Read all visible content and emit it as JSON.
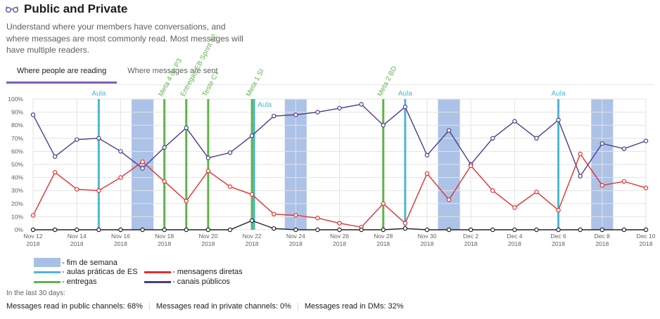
{
  "header": {
    "title": "Public and Private",
    "icon": "glasses-icon"
  },
  "description": "Understand where your members have conversations, and where messages are most commonly read. Most messages will have multiple readers.",
  "tabs": [
    {
      "label": "Where people are reading",
      "active": true
    },
    {
      "label": "Where messages are sent",
      "active": false
    }
  ],
  "chart_data": {
    "type": "line",
    "x": [
      "2018-11-12",
      "2018-11-13",
      "2018-11-14",
      "2018-11-15",
      "2018-11-16",
      "2018-11-17",
      "2018-11-18",
      "2018-11-19",
      "2018-11-20",
      "2018-11-21",
      "2018-11-22",
      "2018-11-23",
      "2018-11-24",
      "2018-11-25",
      "2018-11-26",
      "2018-11-27",
      "2018-11-28",
      "2018-11-29",
      "2018-11-30",
      "2018-12-01",
      "2018-12-02",
      "2018-12-03",
      "2018-12-04",
      "2018-12-05",
      "2018-12-06",
      "2018-12-07",
      "2018-12-08",
      "2018-12-09",
      "2018-12-10"
    ],
    "x_ticks": [
      {
        "label": "Nov 12",
        "year": "2018"
      },
      {
        "label": "Nov 14",
        "year": "2018"
      },
      {
        "label": "Nov 16",
        "year": "2018"
      },
      {
        "label": "Nov 18",
        "year": "2018"
      },
      {
        "label": "Nov 20",
        "year": "2018"
      },
      {
        "label": "Nov 22",
        "year": "2018"
      },
      {
        "label": "Nov 24",
        "year": "2018"
      },
      {
        "label": "Nov 26",
        "year": "2018"
      },
      {
        "label": "Nov 28",
        "year": "2018"
      },
      {
        "label": "Nov 30",
        "year": "2018"
      },
      {
        "label": "Dec 2",
        "year": "2018"
      },
      {
        "label": "Dec 4",
        "year": "2018"
      },
      {
        "label": "Dec 6",
        "year": "2018"
      },
      {
        "label": "Dec 8",
        "year": "2018"
      },
      {
        "label": "Dec 10",
        "year": "2018"
      }
    ],
    "y_ticks": [
      "0%",
      "10%",
      "20%",
      "30%",
      "40%",
      "50%",
      "60%",
      "70%",
      "80%",
      "90%",
      "100%"
    ],
    "ylim": [
      0,
      100
    ],
    "grid": true,
    "series": [
      {
        "key": "public",
        "color": "#4a3c8c",
        "values": [
          88,
          56,
          69,
          70,
          60,
          47,
          63,
          78,
          55,
          59,
          72,
          87,
          88,
          90,
          93,
          96,
          80,
          94,
          57,
          76,
          50,
          70,
          83,
          70,
          84,
          41,
          66,
          62,
          68
        ]
      },
      {
        "key": "dm",
        "color": "#e0302f",
        "values": [
          11,
          44,
          31,
          30,
          40,
          52,
          37,
          22,
          45,
          33,
          27,
          12,
          11,
          9,
          5,
          2,
          20,
          5,
          43,
          23,
          49,
          30,
          17,
          29,
          15,
          58,
          34,
          37,
          32
        ]
      },
      {
        "key": "private",
        "color": "#222222",
        "values": [
          0,
          0,
          0,
          0,
          0,
          0,
          0,
          0,
          0,
          0,
          7,
          1,
          0,
          0,
          0,
          0,
          0,
          1,
          0,
          0,
          0,
          0,
          0,
          0,
          0,
          0,
          0,
          0,
          0
        ]
      }
    ],
    "weekend_bands": [
      [
        "2018-11-16.5",
        "2018-11-17.5"
      ],
      [
        "2018-11-23.5",
        "2018-11-24.5"
      ],
      [
        "2018-11-30.5",
        "2018-12-01.5"
      ],
      [
        "2018-12-07.5",
        "2018-12-08.5"
      ]
    ],
    "events": [
      {
        "date": "2018-11-15",
        "type": "aula",
        "label": "Aula"
      },
      {
        "date": "2018-11-18",
        "type": "entrega",
        "label": "Meta 4 de P3"
      },
      {
        "date": "2018-11-19",
        "type": "entrega",
        "label": "Entregas EB Sprint #2"
      },
      {
        "date": "2018-11-20",
        "type": "entrega",
        "label": "Teste CT"
      },
      {
        "date": "2018-11-22",
        "type": "entrega",
        "label": "Meta 1 SI"
      },
      {
        "date": "2018-11-22",
        "type": "aula",
        "label": "Aula"
      },
      {
        "date": "2018-11-28",
        "type": "entrega",
        "label": "Meta 2 BD"
      },
      {
        "date": "2018-11-29",
        "type": "aula",
        "label": "Aula"
      },
      {
        "date": "2018-12-06",
        "type": "aula",
        "label": "Aula"
      }
    ]
  },
  "legend": {
    "weekend": "- fim de semana",
    "aula": "- aulas práticas de ES",
    "entrega": "- entregas",
    "dm": "- mensagens diretas",
    "public": "- canais públicos"
  },
  "colors": {
    "weekend": "#a9bfe6",
    "aula": "#4cb8d0",
    "entrega": "#5fb54a",
    "dm": "#e0302f",
    "public": "#4a3c8c",
    "private": "#222222",
    "tab_accent": "#7a61b3"
  },
  "footnote": "In the last 30 days:",
  "summary": {
    "public_label": "Messages read in public channels:",
    "public_value": "68%",
    "private_label": "Messages read in private channels:",
    "private_value": "0%",
    "dm_label": "Messages read in DMs:",
    "dm_value": "32%"
  }
}
